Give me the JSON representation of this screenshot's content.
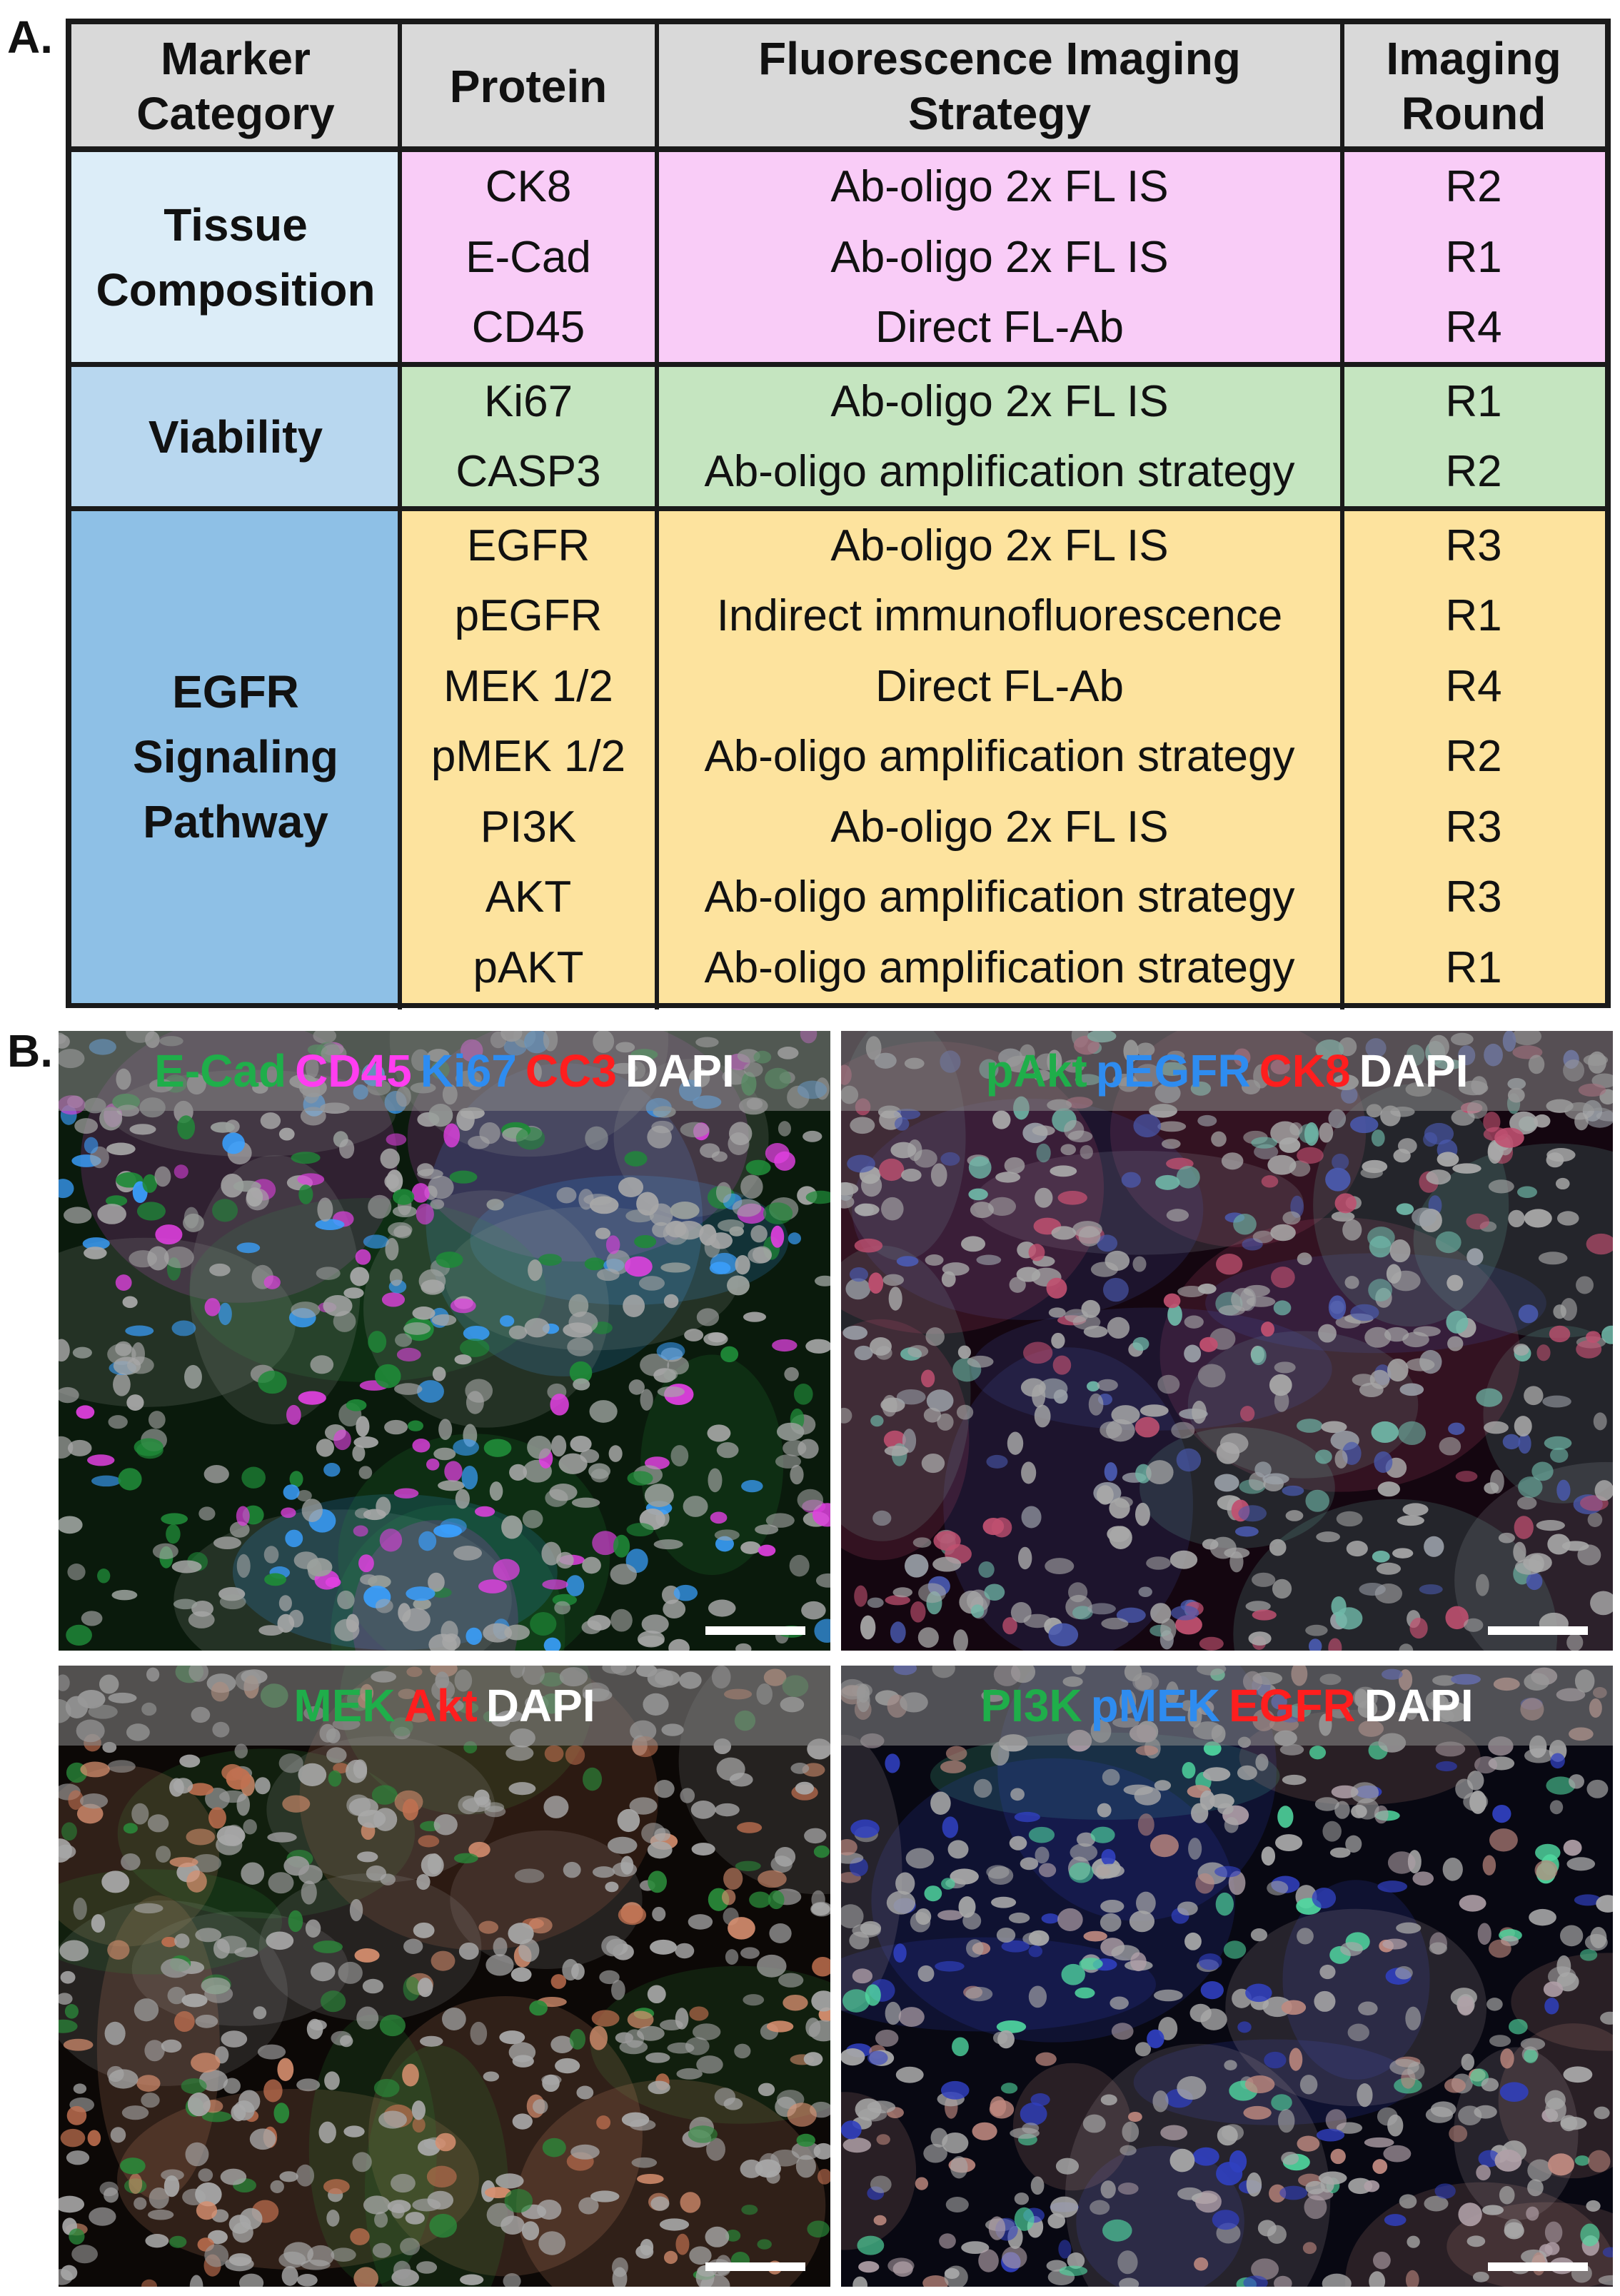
{
  "panel_a_label": "A.",
  "panel_b_label": "B.",
  "table": {
    "headers": [
      "Marker Category",
      "Protein",
      "Fluorescence Imaging Strategy",
      "Imaging Round"
    ],
    "groups": [
      {
        "category": "Tissue Composition",
        "category_color": "#dcedf8",
        "row_color": "#f9ccf7",
        "rows": [
          {
            "protein": "CK8",
            "strategy": "Ab-oligo 2x FL IS",
            "round": "R2"
          },
          {
            "protein": "E-Cad",
            "strategy": "Ab-oligo 2x FL IS",
            "round": "R1"
          },
          {
            "protein": "CD45",
            "strategy": "Direct FL-Ab",
            "round": "R4"
          }
        ]
      },
      {
        "category": "Viability",
        "category_color": "#b8d7ef",
        "row_color": "#c5e5c0",
        "rows": [
          {
            "protein": "Ki67",
            "strategy": "Ab-oligo 2x FL IS",
            "round": "R1"
          },
          {
            "protein": "CASP3",
            "strategy": "Ab-oligo amplification strategy",
            "round": "R2"
          }
        ]
      },
      {
        "category": "EGFR Signaling Pathway",
        "category_color": "#8ec0e6",
        "row_color": "#fde39e",
        "rows": [
          {
            "protein": "EGFR",
            "strategy": "Ab-oligo 2x FL IS",
            "round": "R3"
          },
          {
            "protein": "pEGFR",
            "strategy": "Indirect immunofluorescence",
            "round": "R1"
          },
          {
            "protein": "MEK 1/2",
            "strategy": "Direct FL-Ab",
            "round": "R4"
          },
          {
            "protein": "pMEK 1/2",
            "strategy": "Ab-oligo amplification strategy",
            "round": "R2"
          },
          {
            "protein": "PI3K",
            "strategy": "Ab-oligo 2x FL IS",
            "round": "R3"
          },
          {
            "protein": "AKT",
            "strategy": "Ab-oligo amplification strategy",
            "round": "R3"
          },
          {
            "protein": "pAKT",
            "strategy": "Ab-oligo amplification strategy",
            "round": "R1"
          }
        ]
      }
    ]
  },
  "images": [
    {
      "channels": [
        {
          "name": "E-Cad",
          "color": "#1fae4a"
        },
        {
          "name": "CD45",
          "color": "#ff3df0"
        },
        {
          "name": "Ki67",
          "color": "#2e8cf0"
        },
        {
          "name": "CC3",
          "color": "#ff1e1e"
        },
        {
          "name": "DAPI",
          "color": "#ffffff"
        }
      ],
      "palette": {
        "bg": "#0a1a0c",
        "cells": [
          "#1f8a38",
          "#9aa09c",
          "#3aa0ff",
          "#e040e0"
        ]
      }
    },
    {
      "channels": [
        {
          "name": "pAkt",
          "color": "#1fae4a"
        },
        {
          "name": "pEGFR",
          "color": "#2e8cf0"
        },
        {
          "name": "CK8",
          "color": "#ff1e1e"
        },
        {
          "name": "DAPI",
          "color": "#ffffff"
        }
      ],
      "palette": {
        "bg": "#140610",
        "cells": [
          "#6fb8a8",
          "#c05070",
          "#9aa0a8",
          "#4a5ab0"
        ]
      }
    },
    {
      "channels": [
        {
          "name": "MEK",
          "color": "#1fae4a"
        },
        {
          "name": "Akt",
          "color": "#ff1e1e"
        },
        {
          "name": "DAPI",
          "color": "#ffffff"
        }
      ],
      "palette": {
        "bg": "#0c0806",
        "cells": [
          "#c07050",
          "#9a9a9a",
          "#d89070",
          "#2a8a3a"
        ]
      }
    },
    {
      "channels": [
        {
          "name": "PI3K",
          "color": "#1fae4a"
        },
        {
          "name": "pMEK",
          "color": "#2e8cf0"
        },
        {
          "name": "EGFR",
          "color": "#ff1e1e"
        },
        {
          "name": "DAPI",
          "color": "#ffffff"
        }
      ],
      "palette": {
        "bg": "#080812",
        "cells": [
          "#b0a0a8",
          "#50d8a0",
          "#c08a80",
          "#3040c0"
        ]
      }
    }
  ]
}
